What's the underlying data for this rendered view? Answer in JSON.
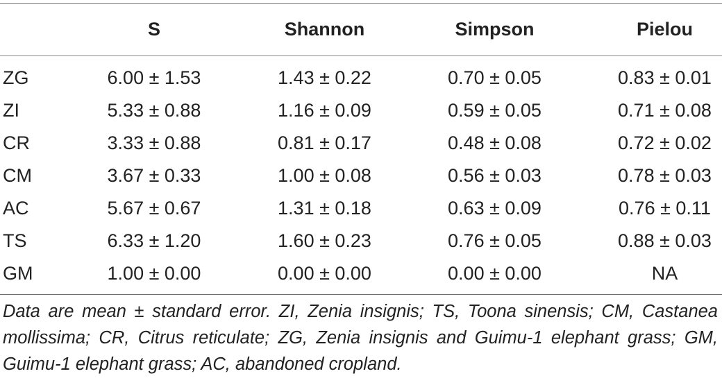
{
  "table": {
    "columns": [
      "",
      "S",
      "Shannon",
      "Simpson",
      "Pielou"
    ],
    "rows": [
      {
        "label": "ZG",
        "s": "6.00 ± 1.53",
        "shannon": "1.43 ± 0.22",
        "simpson": "0.70 ± 0.05",
        "pielou": "0.83 ± 0.01"
      },
      {
        "label": "ZI",
        "s": "5.33 ± 0.88",
        "shannon": "1.16 ± 0.09",
        "simpson": "0.59 ± 0.05",
        "pielou": "0.71 ± 0.08"
      },
      {
        "label": "CR",
        "s": "3.33 ± 0.88",
        "shannon": "0.81 ± 0.17",
        "simpson": "0.48 ± 0.08",
        "pielou": "0.72 ± 0.02"
      },
      {
        "label": "CM",
        "s": "3.67 ± 0.33",
        "shannon": "1.00 ± 0.08",
        "simpson": "0.56 ± 0.03",
        "pielou": "0.78 ± 0.03"
      },
      {
        "label": "AC",
        "s": "5.67 ± 0.67",
        "shannon": "1.31 ± 0.18",
        "simpson": "0.63 ± 0.09",
        "pielou": "0.76 ± 0.11"
      },
      {
        "label": "TS",
        "s": "6.33 ± 1.20",
        "shannon": "1.60 ± 0.23",
        "simpson": "0.76 ± 0.05",
        "pielou": "0.88 ± 0.03"
      },
      {
        "label": "GM",
        "s": "1.00 ± 0.00",
        "shannon": "0.00 ± 0.00",
        "simpson": "0.00 ± 0.00",
        "pielou": "NA"
      }
    ]
  },
  "footnote": "Data are mean ± standard error. ZI, Zenia insignis; TS, Toona sinensis; CM, Castanea mollissima; CR, Citrus reticulate; ZG, Zenia insignis and Guimu-1 elephant grass; GM, Guimu-1 elephant grass; AC, abandoned cropland."
}
